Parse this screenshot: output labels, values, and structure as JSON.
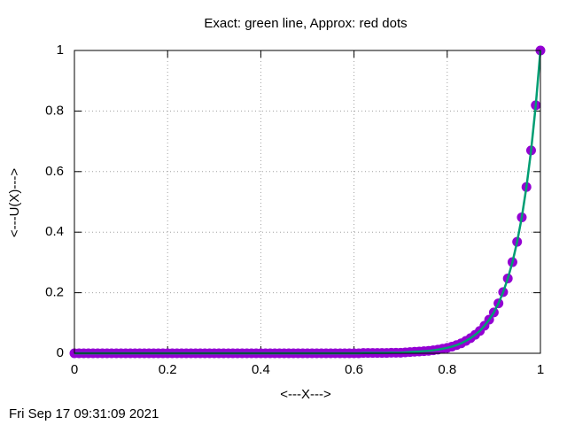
{
  "chart_data": {
    "type": "line",
    "title": "Exact: green line, Approx: red dots",
    "x_label": "<---X--->",
    "y_label": "<---U(X)--->",
    "timestamp": "Fri Sep 17 09:31:09 2021",
    "x": [
      0,
      0.01,
      0.02,
      0.03,
      0.04,
      0.05,
      0.06,
      0.07,
      0.08,
      0.09,
      0.1,
      0.11,
      0.12,
      0.13,
      0.14,
      0.15,
      0.16,
      0.17,
      0.18,
      0.19,
      0.2,
      0.21,
      0.22,
      0.23,
      0.24,
      0.25,
      0.26,
      0.27,
      0.28,
      0.29,
      0.3,
      0.31,
      0.32,
      0.33,
      0.34,
      0.35,
      0.36,
      0.37,
      0.38,
      0.39,
      0.4,
      0.41,
      0.42,
      0.43,
      0.44,
      0.45,
      0.46,
      0.47,
      0.48,
      0.49,
      0.5,
      0.51,
      0.52,
      0.53,
      0.54,
      0.55,
      0.56,
      0.57,
      0.58,
      0.59,
      0.6,
      0.61,
      0.62,
      0.63,
      0.64,
      0.65,
      0.66,
      0.67,
      0.68,
      0.69,
      0.7,
      0.71,
      0.72,
      0.73,
      0.74,
      0.75,
      0.76,
      0.77,
      0.78,
      0.79,
      0.8,
      0.81,
      0.82,
      0.83,
      0.84,
      0.85,
      0.86,
      0.87,
      0.88,
      0.89,
      0.9,
      0.91,
      0.92,
      0.93,
      0.94,
      0.95,
      0.96,
      0.97,
      0.98,
      0.99,
      1
    ],
    "series": [
      {
        "style": "points",
        "color": "#9400d3",
        "values": [
          0,
          0,
          0,
          0,
          0,
          0,
          0,
          0,
          0,
          0,
          0,
          0,
          0,
          0,
          0,
          0,
          0,
          0,
          0,
          0,
          0,
          0,
          0,
          0,
          0,
          0,
          0,
          0,
          0,
          0,
          0,
          0,
          0,
          0,
          0,
          0,
          0,
          0,
          0,
          0,
          0,
          0,
          0,
          0,
          0,
          0,
          0,
          0,
          0,
          0,
          0,
          0,
          0,
          0,
          0,
          0,
          0,
          0,
          0,
          0,
          0,
          0,
          0.001,
          0.001,
          0.001,
          0.001,
          0.001,
          0.001,
          0.002,
          0.002,
          0.002,
          0.003,
          0.004,
          0.005,
          0.006,
          0.007,
          0.008,
          0.01,
          0.012,
          0.015,
          0.018,
          0.022,
          0.027,
          0.033,
          0.041,
          0.05,
          0.061,
          0.074,
          0.091,
          0.111,
          0.135,
          0.165,
          0.202,
          0.247,
          0.301,
          0.368,
          0.449,
          0.549,
          0.67,
          0.819,
          1
        ]
      },
      {
        "style": "line",
        "color": "#009e73",
        "values": [
          0,
          0,
          0,
          0,
          0,
          0,
          0,
          0,
          0,
          0,
          0,
          0,
          0,
          0,
          0,
          0,
          0,
          0,
          0,
          0,
          0,
          0,
          0,
          0,
          0,
          0,
          0,
          0,
          0,
          0,
          0,
          0,
          0,
          0,
          0,
          0,
          0,
          0,
          0,
          0,
          0,
          0,
          0,
          0,
          0,
          0,
          0,
          0,
          0,
          0,
          0,
          0,
          0,
          0,
          0,
          0,
          0,
          0,
          0,
          0,
          0,
          0,
          0.001,
          0.001,
          0.001,
          0.001,
          0.001,
          0.001,
          0.002,
          0.002,
          0.002,
          0.003,
          0.004,
          0.005,
          0.006,
          0.007,
          0.008,
          0.01,
          0.012,
          0.015,
          0.018,
          0.022,
          0.027,
          0.033,
          0.041,
          0.05,
          0.061,
          0.074,
          0.091,
          0.111,
          0.135,
          0.165,
          0.202,
          0.247,
          0.301,
          0.368,
          0.449,
          0.549,
          0.67,
          0.819,
          1
        ]
      }
    ],
    "xlim": [
      0,
      1
    ],
    "xticks": [
      0,
      0.2,
      0.4,
      0.6,
      0.8,
      1
    ],
    "ylim": [
      0,
      1
    ],
    "yticks": [
      0,
      0.2,
      0.4,
      0.6,
      0.8,
      1
    ],
    "grid": true
  }
}
